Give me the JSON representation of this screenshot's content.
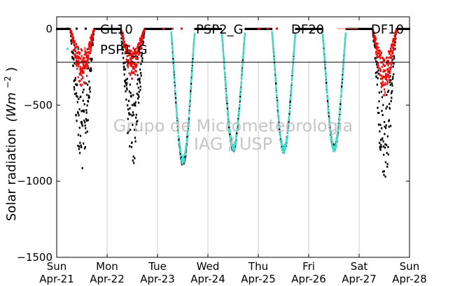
{
  "chart_data": {
    "type": "scatter",
    "ylabel": "Solar radiation",
    "ylabel_unit": "(Wm",
    "ylabel_exp": "−2",
    "ylabel_close": ")",
    "ylim": [
      -1500,
      80
    ],
    "yticks": [
      {
        "value": 0,
        "label": "0"
      },
      {
        "value": -500,
        "label": "−500"
      },
      {
        "value": -1000,
        "label": "−1000"
      },
      {
        "value": -1500,
        "label": "−1500"
      }
    ],
    "xlim": [
      0,
      7
    ],
    "xticks": [
      {
        "value": 0,
        "day": "Sun",
        "date": "Apr-21"
      },
      {
        "value": 1,
        "day": "Mon",
        "date": "Apr-22"
      },
      {
        "value": 2,
        "day": "Tue",
        "date": "Apr-23"
      },
      {
        "value": 3,
        "day": "Wed",
        "date": "Apr-24"
      },
      {
        "value": 4,
        "day": "Thu",
        "date": "Apr-25"
      },
      {
        "value": 5,
        "day": "Fri",
        "date": "Apr-26"
      },
      {
        "value": 6,
        "day": "Sat",
        "date": "Apr-27"
      },
      {
        "value": 7,
        "day": "Sun",
        "date": "Apr-28"
      }
    ],
    "grid": "vertical",
    "legend_placement": "top",
    "series": [
      {
        "name": "GL10",
        "color": "#000000",
        "days": [
          {
            "day": 0,
            "peak": -900,
            "mode": "cloudy"
          },
          {
            "day": 1,
            "peak": -860,
            "mode": "cloudy"
          },
          {
            "day": 2,
            "peak": -880,
            "mode": "clear"
          },
          {
            "day": 3,
            "peak": -790,
            "mode": "clear"
          },
          {
            "day": 4,
            "peak": -800,
            "mode": "clear"
          },
          {
            "day": 5,
            "peak": -790,
            "mode": "clear"
          },
          {
            "day": 6,
            "peak": -950,
            "mode": "cloudy"
          }
        ]
      },
      {
        "name": "PSP2_G",
        "color": "#d62020",
        "days": [
          {
            "day": 0,
            "peak": -380,
            "mode": "cloudy"
          },
          {
            "day": 1,
            "peak": -320,
            "mode": "cloudy"
          },
          {
            "day": 6,
            "peak": -430,
            "mode": "cloudy"
          }
        ]
      },
      {
        "name": "DF20",
        "color": "#ff0000",
        "days": [
          {
            "day": 0,
            "peak": -300,
            "mode": "cloudy"
          },
          {
            "day": 1,
            "peak": -280,
            "mode": "cloudy"
          },
          {
            "day": 6,
            "peak": -380,
            "mode": "cloudy"
          }
        ]
      },
      {
        "name": "DF10",
        "color": "#ff6a6a",
        "days": []
      },
      {
        "name": "PSP1_G",
        "color": "#40e0d0",
        "days": [
          {
            "day": 2,
            "peak": -870,
            "mode": "clear"
          },
          {
            "day": 3,
            "peak": -790,
            "mode": "clear"
          },
          {
            "day": 4,
            "peak": -800,
            "mode": "clear"
          },
          {
            "day": 5,
            "peak": -790,
            "mode": "clear"
          }
        ]
      }
    ],
    "legend": [
      {
        "name": "GL10",
        "marker": "dots",
        "color": "#000000"
      },
      {
        "name": "PSP2_G",
        "marker": "dots",
        "color": "#d62020"
      },
      {
        "name": "DF20",
        "marker": "dots",
        "color": "#ff0000"
      },
      {
        "name": "DF10",
        "marker": "line",
        "color": "#ff6a6a"
      },
      {
        "name": "PSP1_G",
        "marker": "dots",
        "color": "#40e0d0"
      }
    ]
  },
  "watermark": {
    "line1": "Grupo de Micrometeorologia",
    "line2": "IAG / USP"
  }
}
